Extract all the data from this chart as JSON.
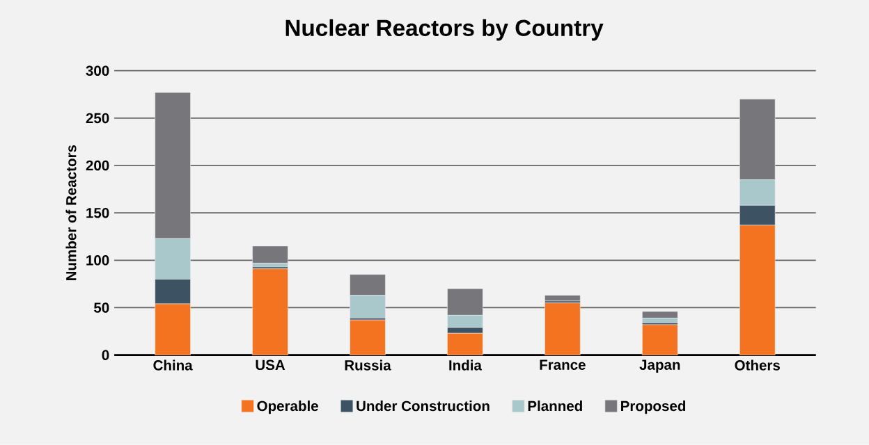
{
  "chart_data": {
    "type": "bar",
    "title": "Nuclear Reactors by Country",
    "ylabel": "Number of Reactors",
    "categories": [
      "China",
      "USA",
      "Russia",
      "India",
      "France",
      "Japan",
      "Others"
    ],
    "stacked": true,
    "series": [
      {
        "name": "Operable",
        "color": "#f37321",
        "values": [
          54,
          91,
          37,
          23,
          55,
          32,
          137
        ]
      },
      {
        "name": "Under Construction",
        "color": "#3d5363",
        "values": [
          26,
          2,
          2,
          6,
          2,
          2,
          21
        ]
      },
      {
        "name": "Planned",
        "color": "#a8c8cb",
        "values": [
          43,
          4,
          24,
          13,
          0,
          5,
          27
        ]
      },
      {
        "name": "Proposed",
        "color": "#77777b",
        "values": [
          154,
          18,
          22,
          28,
          6,
          7,
          85
        ]
      }
    ],
    "ylim": [
      0,
      300
    ],
    "yticks": [
      0,
      50,
      100,
      150,
      200,
      250,
      300
    ],
    "grid": "y",
    "legend": "bottom"
  }
}
